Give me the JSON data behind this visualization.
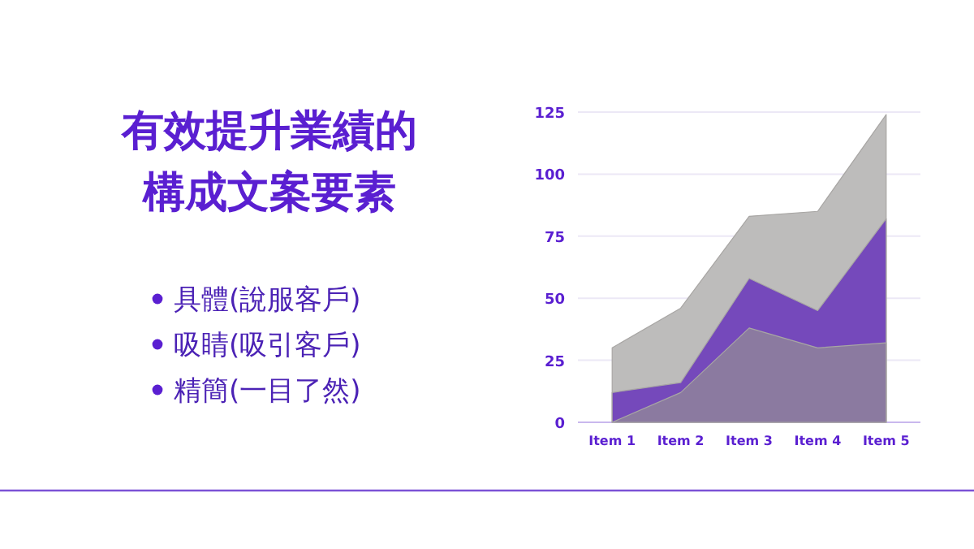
{
  "chart_data": [
    {
      "type": "other",
      "title": "有效提升業績的構成文案要素",
      "annotations": [
        "具體(說服客戶)",
        "吸睛(吸引客戶)",
        "精簡(一目了然)"
      ]
    },
    {
      "type": "area",
      "categories": [
        "Item 1",
        "Item 2",
        "Item 3",
        "Item 4",
        "Item 5"
      ],
      "series": [
        {
          "color": "#bdbcbb",
          "values": [
            30,
            46,
            83,
            85,
            124
          ]
        },
        {
          "color": "#7549bb",
          "values": [
            12,
            16,
            58,
            45,
            82
          ]
        },
        {
          "color": "#8b7aa0",
          "values": [
            0,
            12,
            38,
            30,
            32
          ]
        }
      ],
      "ylim": [
        0,
        125
      ],
      "yticks": [
        0,
        25,
        50,
        75,
        100,
        125
      ],
      "grid": "y"
    }
  ]
}
